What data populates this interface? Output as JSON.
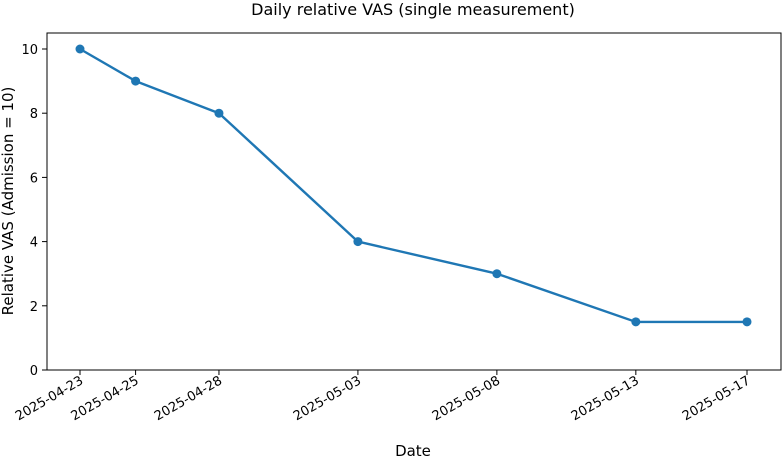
{
  "chart_data": {
    "type": "line",
    "title": "Daily relative VAS (single measurement)",
    "xlabel": "Date",
    "ylabel": "Relative VAS (Admission = 10)",
    "x": [
      "2025-04-23",
      "2025-04-25",
      "2025-04-28",
      "2025-05-03",
      "2025-05-08",
      "2025-05-13",
      "2025-05-17"
    ],
    "series": [
      {
        "values": [
          10,
          9,
          8,
          4,
          3,
          1.5,
          1.5
        ]
      }
    ],
    "ylim": [
      0,
      10
    ],
    "yticks": [
      0,
      2,
      4,
      6,
      8,
      10
    ],
    "xticks": [
      "2025-04-23",
      "2025-04-25",
      "2025-04-28",
      "2025-05-03",
      "2025-05-08",
      "2025-05-13",
      "2025-05-17"
    ],
    "grid": false,
    "colors": {
      "line": "#1f77b4"
    }
  }
}
